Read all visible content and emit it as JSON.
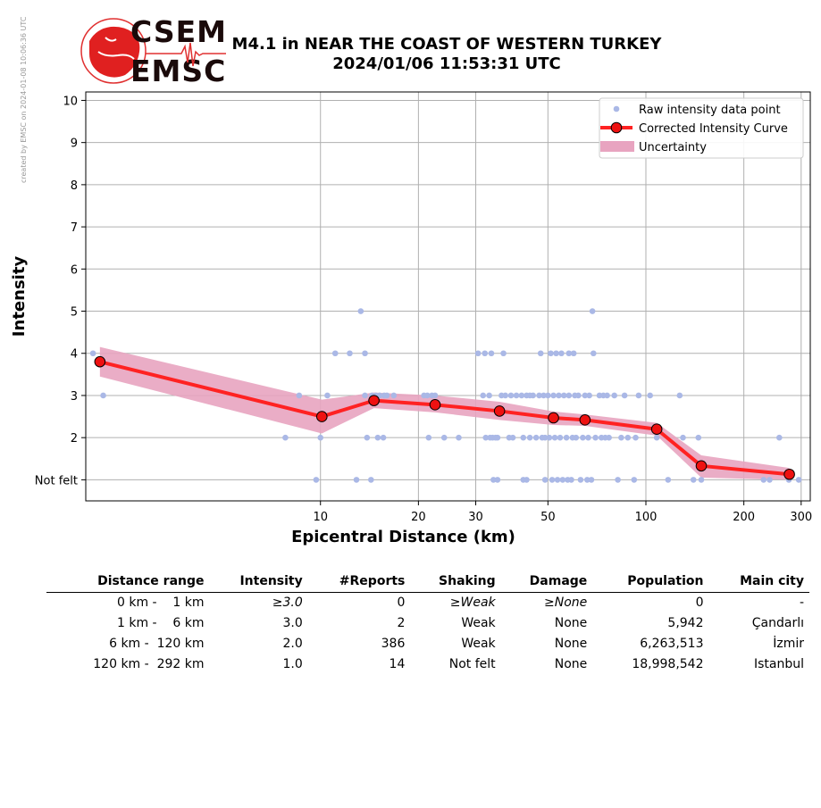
{
  "credit": "created by EMSC on 2024-01-08 10:06:36 UTC",
  "logo": {
    "line1": "CSEM",
    "line2": "EMSC"
  },
  "title": {
    "line1": "M4.1 in NEAR THE COAST OF WESTERN TURKEY",
    "line2": "2024/01/06 11:53:31 UTC"
  },
  "colors": {
    "raw": "#aab8e6",
    "curve": "#ff2222",
    "marker": "#ee1111",
    "uncertainty": "#e8a4c0"
  },
  "chart_data": {
    "type": "scatter",
    "xlabel": "Epicentral Distance (km)",
    "ylabel": "Intensity",
    "x_scale": "log",
    "xlim": [
      1.9,
      320
    ],
    "ylim": [
      0.5,
      10.2
    ],
    "x_ticks": [
      10,
      20,
      30,
      50,
      100,
      200,
      300
    ],
    "y_ticks": [
      {
        "v": 1,
        "label": "Not felt"
      },
      {
        "v": 2,
        "label": "2"
      },
      {
        "v": 3,
        "label": "3"
      },
      {
        "v": 4,
        "label": "4"
      },
      {
        "v": 5,
        "label": "5"
      },
      {
        "v": 6,
        "label": "6"
      },
      {
        "v": 7,
        "label": "7"
      },
      {
        "v": 8,
        "label": "8"
      },
      {
        "v": 9,
        "label": "9"
      },
      {
        "v": 10,
        "label": "10"
      }
    ],
    "grid": true,
    "legend_position": "top-right",
    "legend": [
      "Raw intensity data point",
      "Corrected Intensity Curve",
      "Uncertainty"
    ],
    "raw_points": [
      [
        2.0,
        4
      ],
      [
        2.15,
        3
      ],
      [
        7.8,
        2
      ],
      [
        8.6,
        3
      ],
      [
        9.7,
        1
      ],
      [
        10,
        2
      ],
      [
        10.5,
        3
      ],
      [
        11.1,
        4
      ],
      [
        12.3,
        4
      ],
      [
        12.9,
        1
      ],
      [
        13.3,
        5
      ],
      [
        13.7,
        4
      ],
      [
        13.7,
        3
      ],
      [
        13.9,
        2
      ],
      [
        14.3,
        1
      ],
      [
        14.4,
        3
      ],
      [
        14.8,
        3
      ],
      [
        15.0,
        2
      ],
      [
        15.2,
        3
      ],
      [
        15.6,
        2
      ],
      [
        15.7,
        3
      ],
      [
        16.0,
        3
      ],
      [
        16.8,
        3
      ],
      [
        20.8,
        3
      ],
      [
        21.3,
        3
      ],
      [
        21.5,
        2
      ],
      [
        22.0,
        3
      ],
      [
        22.5,
        3
      ],
      [
        24,
        2
      ],
      [
        26.6,
        2
      ],
      [
        30.5,
        4
      ],
      [
        31.6,
        3
      ],
      [
        32,
        4
      ],
      [
        32.2,
        2
      ],
      [
        33.0,
        3
      ],
      [
        33.2,
        2
      ],
      [
        33.5,
        4
      ],
      [
        33.8,
        2
      ],
      [
        34,
        1
      ],
      [
        34.5,
        2
      ],
      [
        35,
        1
      ],
      [
        35,
        2
      ],
      [
        36,
        3
      ],
      [
        36.5,
        4
      ],
      [
        37,
        3
      ],
      [
        38,
        2
      ],
      [
        38.5,
        3
      ],
      [
        39,
        2
      ],
      [
        40,
        3
      ],
      [
        41.5,
        3
      ],
      [
        42,
        1
      ],
      [
        42,
        2
      ],
      [
        43,
        3
      ],
      [
        43,
        1
      ],
      [
        44,
        2
      ],
      [
        44,
        3
      ],
      [
        45,
        3
      ],
      [
        46,
        2
      ],
      [
        47,
        3
      ],
      [
        47.5,
        4
      ],
      [
        48,
        2
      ],
      [
        48.5,
        3
      ],
      [
        49,
        1
      ],
      [
        49,
        2
      ],
      [
        50,
        3
      ],
      [
        50.5,
        2
      ],
      [
        51,
        4
      ],
      [
        51.5,
        1
      ],
      [
        52,
        3
      ],
      [
        52.5,
        2
      ],
      [
        53,
        4
      ],
      [
        53.5,
        1
      ],
      [
        54,
        3
      ],
      [
        54.5,
        2
      ],
      [
        55,
        4
      ],
      [
        55.5,
        1
      ],
      [
        56,
        3
      ],
      [
        57,
        2
      ],
      [
        57.5,
        1
      ],
      [
        58,
        4
      ],
      [
        58,
        3
      ],
      [
        59,
        1
      ],
      [
        59.5,
        2
      ],
      [
        60,
        4
      ],
      [
        60.5,
        3
      ],
      [
        61,
        2
      ],
      [
        62,
        3
      ],
      [
        63,
        1
      ],
      [
        64,
        2
      ],
      [
        65,
        3
      ],
      [
        66,
        1
      ],
      [
        66.5,
        2
      ],
      [
        67,
        3
      ],
      [
        68,
        1
      ],
      [
        68.5,
        5
      ],
      [
        69,
        4
      ],
      [
        70,
        2
      ],
      [
        72,
        3
      ],
      [
        73,
        2
      ],
      [
        74,
        3
      ],
      [
        75,
        2
      ],
      [
        76,
        3
      ],
      [
        77,
        2
      ],
      [
        80,
        3
      ],
      [
        82,
        1
      ],
      [
        84,
        2
      ],
      [
        86,
        3
      ],
      [
        88,
        2
      ],
      [
        92,
        1
      ],
      [
        93,
        2
      ],
      [
        95,
        3
      ],
      [
        103,
        3
      ],
      [
        108,
        2
      ],
      [
        117,
        1
      ],
      [
        127,
        3
      ],
      [
        130,
        2
      ],
      [
        140,
        1
      ],
      [
        145,
        2
      ],
      [
        148,
        1
      ],
      [
        230,
        1
      ],
      [
        240,
        1
      ],
      [
        257,
        2
      ],
      [
        275,
        1
      ],
      [
        295,
        1
      ]
    ],
    "curve": [
      {
        "x": 2.1,
        "y": 3.8
      },
      {
        "x": 10.1,
        "y": 2.5
      },
      {
        "x": 14.6,
        "y": 2.88
      },
      {
        "x": 22.5,
        "y": 2.78
      },
      {
        "x": 35.5,
        "y": 2.63
      },
      {
        "x": 52.0,
        "y": 2.47
      },
      {
        "x": 65.0,
        "y": 2.42
      },
      {
        "x": 108,
        "y": 2.2
      },
      {
        "x": 148,
        "y": 1.33
      },
      {
        "x": 276,
        "y": 1.13
      }
    ],
    "uncertainty_band": {
      "x": [
        2.1,
        10.1,
        14.6,
        22.5,
        35.5,
        52.0,
        65.0,
        108,
        148,
        276
      ],
      "upper": [
        4.15,
        2.9,
        3.07,
        3.0,
        2.85,
        2.62,
        2.55,
        2.35,
        1.58,
        1.28
      ],
      "lower": [
        3.45,
        2.1,
        2.7,
        2.6,
        2.42,
        2.3,
        2.28,
        2.05,
        1.05,
        1.0
      ]
    }
  },
  "table": {
    "headers": [
      "Distance range",
      "Intensity",
      "#Reports",
      "Shaking",
      "Damage",
      "Population",
      "Main city"
    ],
    "rows": [
      {
        "range": "0 km -    1 km",
        "intensity": "≥3.0",
        "reports": "0",
        "shaking": "≥Weak",
        "damage": "≥None",
        "population": "0",
        "city": "-"
      },
      {
        "range": "1 km -    6 km",
        "intensity": "3.0",
        "reports": "2",
        "shaking": "Weak",
        "damage": "None",
        "population": "5,942",
        "city": "Çandarlı"
      },
      {
        "range": "6 km -  120 km",
        "intensity": "2.0",
        "reports": "386",
        "shaking": "Weak",
        "damage": "None",
        "population": "6,263,513",
        "city": "İzmir"
      },
      {
        "range": "120 km -  292 km",
        "intensity": "1.0",
        "reports": "14",
        "shaking": "Not felt",
        "damage": "None",
        "population": "18,998,542",
        "city": "Istanbul"
      }
    ]
  }
}
